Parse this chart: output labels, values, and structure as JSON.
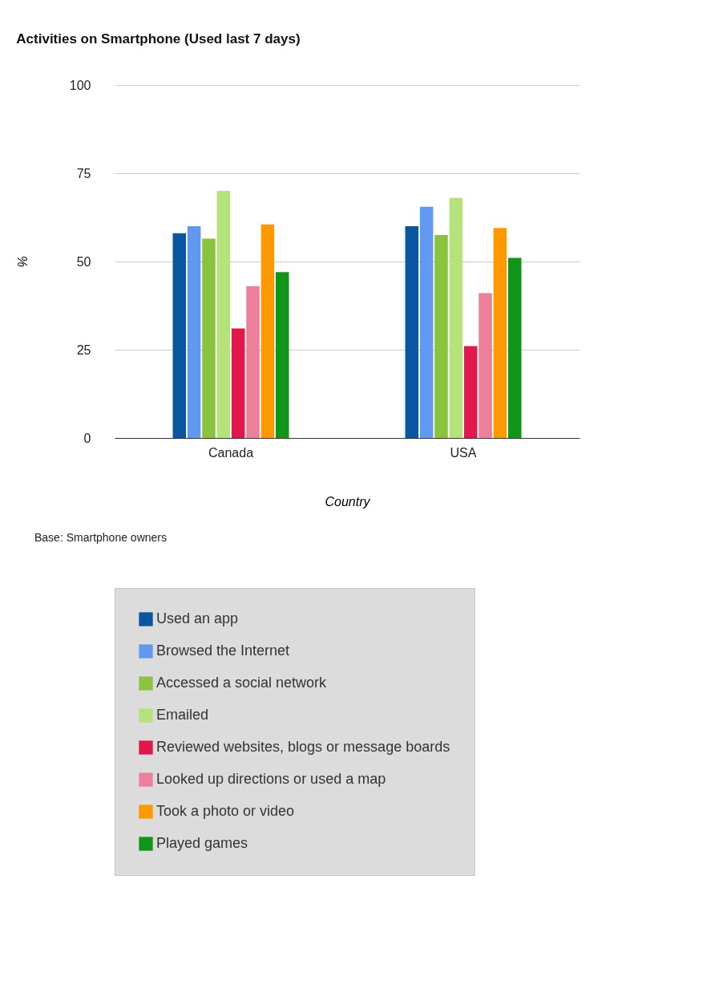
{
  "chart_data": {
    "type": "bar",
    "title": "Activities on Smartphone (Used last 7 days)",
    "xlabel": "Country",
    "ylabel": "%",
    "categories": [
      "Canada",
      "USA"
    ],
    "series": [
      {
        "name": "Used an app",
        "color": "#0b56a0",
        "values": [
          58,
          60
        ]
      },
      {
        "name": "Browsed the Internet",
        "color": "#6199f2",
        "values": [
          60,
          65.5
        ]
      },
      {
        "name": "Accessed a social network",
        "color": "#8bc33f",
        "values": [
          56.5,
          57.5
        ]
      },
      {
        "name": "Emailed",
        "color": "#b5e27a",
        "values": [
          70,
          68
        ]
      },
      {
        "name": "Reviewed websites, blogs or message boards",
        "color": "#e0184c",
        "values": [
          31,
          26
        ]
      },
      {
        "name": "Looked up directions or used a map",
        "color": "#ec7f9a",
        "values": [
          43,
          41
        ]
      },
      {
        "name": "Took a photo or video",
        "color": "#ff9900",
        "values": [
          60.5,
          59.5
        ]
      },
      {
        "name": "Played games",
        "color": "#109618",
        "values": [
          47,
          51
        ]
      }
    ],
    "ylim": [
      0,
      100
    ],
    "yticks": [
      0,
      25,
      50,
      75,
      100
    ],
    "grid": "y",
    "legend": "bottom",
    "annotations": [
      "Base: Smartphone owners"
    ]
  }
}
